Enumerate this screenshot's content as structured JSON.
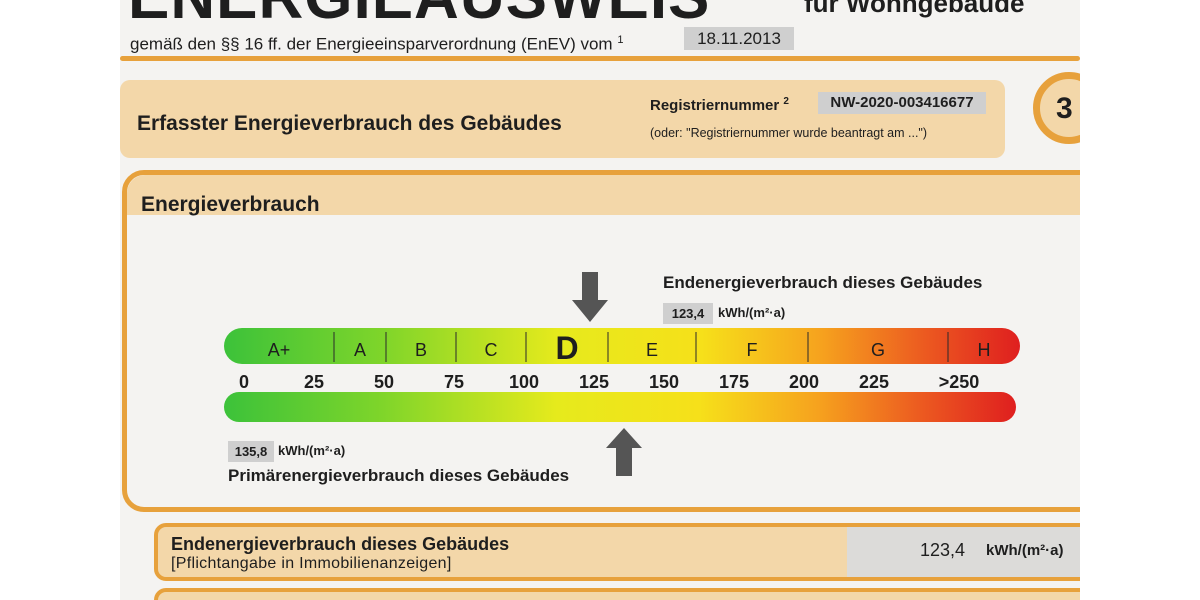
{
  "header": {
    "title": "ENERGIEAUSWEIS",
    "title_rest": "für Wohngebäude",
    "subtitle": "gemäß den §§ 16 ff. der Energieeinsparverordnung (EnEV) vom",
    "footnote_1": "1",
    "date": "18.11.2013"
  },
  "section": {
    "title": "Erfasster Energieverbrauch des Gebäudes",
    "reg_label": "Registriernummer",
    "footnote_2": "2",
    "reg_number": "NW-2020-003416677",
    "reg_note": "(oder: \"Registriernummer wurde beantragt am ...\")",
    "page_number": "3"
  },
  "energy": {
    "title": "Energieverbrauch",
    "end_label": "Endenergieverbrauch dieses Gebäudes",
    "end_value": "123,4",
    "end_unit": "kWh/(m²·a)",
    "prim_value": "135,8",
    "prim_unit": "kWh/(m²·a)",
    "prim_label": "Primärenergieverbrauch dieses Gebäudes",
    "scale_classes": [
      "A+",
      "A",
      "B",
      "C",
      "D",
      "E",
      "F",
      "G",
      "H"
    ],
    "highlighted_class": "D",
    "scale_ticks": [
      "0",
      "25",
      "50",
      "75",
      "100",
      "125",
      "150",
      "175",
      "200",
      "225",
      ">250"
    ],
    "end_marker_value": 123.4,
    "prim_marker_value": 135.8,
    "scale_max": 250
  },
  "summary": {
    "title": "Endenergieverbrauch dieses Gebäudes",
    "subtitle": "[Pflichtangabe in Immobilienanzeigen]",
    "value": "123,4",
    "unit": "kWh/(m²·a)"
  },
  "colors": {
    "accent": "#e7a13c",
    "panel": "#f3d7a9",
    "value_box": "#cfcfcf"
  }
}
